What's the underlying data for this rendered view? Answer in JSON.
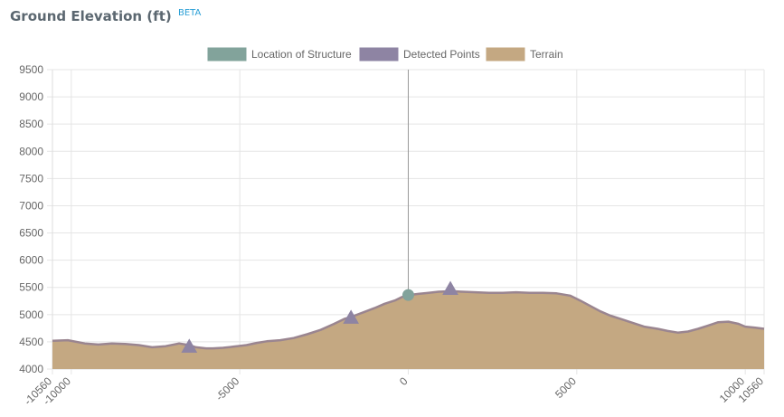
{
  "header": {
    "title": "Ground Elevation (ft)",
    "badge": "BETA"
  },
  "colors": {
    "structure": "#82a39b",
    "detected": "#8e84a3",
    "terrain_fill": "#c4a882",
    "terrain_line": "#9a8590",
    "grid": "#e5e5e5",
    "center_line": "#999999"
  },
  "chart_data": {
    "type": "area",
    "xlabel": "",
    "ylabel": "",
    "xlim": [
      -10560,
      10560
    ],
    "ylim": [
      4000,
      9500
    ],
    "grid": true,
    "legend_position": "top",
    "x_ticks": [
      "-10560",
      "-10000",
      "-5000",
      "0",
      "5000",
      "10000",
      "10560"
    ],
    "y_ticks": [
      "4000",
      "4500",
      "5000",
      "5500",
      "6000",
      "6500",
      "7000",
      "7500",
      "8000",
      "8500",
      "9000",
      "9500"
    ],
    "legend": [
      {
        "label": "Location of Structure",
        "color": "#82a39b"
      },
      {
        "label": "Detected Points",
        "color": "#8e84a3"
      },
      {
        "label": "Terrain",
        "color": "#c4a882"
      }
    ],
    "terrain": {
      "name": "Terrain",
      "x": [
        -10560,
        -10100,
        -9600,
        -9200,
        -8800,
        -8400,
        -8000,
        -7600,
        -7200,
        -6800,
        -6500,
        -6300,
        -6000,
        -5800,
        -5500,
        -5200,
        -4800,
        -4500,
        -4200,
        -3800,
        -3400,
        -3000,
        -2600,
        -2200,
        -1900,
        -1600,
        -1300,
        -1000,
        -700,
        -400,
        -200,
        0,
        300,
        600,
        900,
        1300,
        1600,
        2000,
        2400,
        2800,
        3200,
        3600,
        4000,
        4400,
        4800,
        5100,
        5400,
        5700,
        6000,
        6300,
        6700,
        7000,
        7400,
        7700,
        8000,
        8300,
        8600,
        8900,
        9200,
        9500,
        9800,
        10000,
        10300,
        10560
      ],
      "y": [
        4520,
        4530,
        4470,
        4450,
        4470,
        4460,
        4440,
        4400,
        4420,
        4470,
        4440,
        4400,
        4380,
        4380,
        4390,
        4410,
        4440,
        4480,
        4510,
        4530,
        4570,
        4640,
        4720,
        4830,
        4920,
        4980,
        5050,
        5120,
        5200,
        5260,
        5320,
        5360,
        5380,
        5400,
        5420,
        5430,
        5420,
        5410,
        5400,
        5400,
        5410,
        5400,
        5400,
        5390,
        5350,
        5260,
        5160,
        5060,
        4980,
        4920,
        4840,
        4780,
        4740,
        4700,
        4670,
        4690,
        4740,
        4800,
        4860,
        4870,
        4830,
        4780,
        4760,
        4740
      ]
    },
    "structure": {
      "name": "Location of Structure",
      "x": 0,
      "y": 5360
    },
    "detected_points": {
      "name": "Detected Points",
      "points": [
        {
          "x": -6500,
          "y": 4410
        },
        {
          "x": -1700,
          "y": 4940
        },
        {
          "x": 1250,
          "y": 5470
        }
      ]
    }
  }
}
